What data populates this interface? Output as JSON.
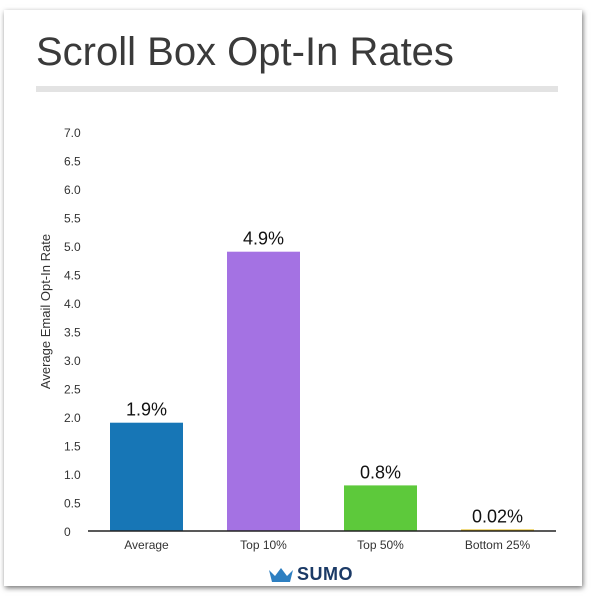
{
  "colors": {
    "title": "#3a3a3a",
    "axis": "#222222",
    "logo": "#1b3a66"
  },
  "brand": {
    "logo_text": "SUMO",
    "icon": "crown-icon"
  },
  "chart_data": {
    "type": "bar",
    "title": "Scroll Box Opt-In Rates",
    "ylabel": "Average Email Opt-In Rate",
    "xlabel": "",
    "ylim": [
      0,
      7.0
    ],
    "yticks": [
      0,
      0.5,
      1.0,
      1.5,
      2.0,
      2.5,
      3.0,
      3.5,
      4.0,
      4.5,
      5.0,
      5.5,
      6.0,
      6.5,
      7.0
    ],
    "ytick_labels": [
      "0",
      "0.5",
      "1.0",
      "1.5",
      "2.0",
      "2.5",
      "3.0",
      "3.5",
      "4.0",
      "4.5",
      "5.0",
      "5.5",
      "6.0",
      "6.5",
      "7.0"
    ],
    "categories": [
      "Average",
      "Top 10%",
      "Top 50%",
      "Bottom 25%"
    ],
    "values": [
      1.9,
      4.9,
      0.8,
      0.02
    ],
    "data_labels": [
      "1.9%",
      "4.9%",
      "0.8%",
      "0.02%"
    ],
    "bar_colors": [
      "#1776b6",
      "#a472e3",
      "#5dc93b",
      "#e0b400"
    ],
    "grid": false,
    "legend": "none"
  }
}
